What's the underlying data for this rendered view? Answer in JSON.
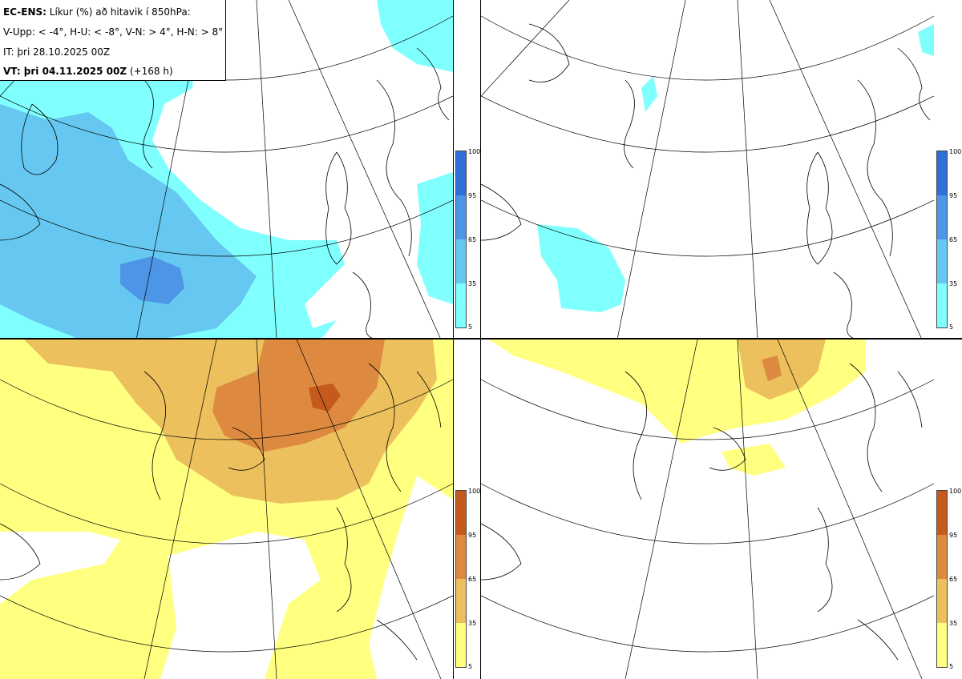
{
  "info": {
    "line1_bold": "EC-ENS:",
    "line1_rest": " Líkur (%) að hitavik í 850hPa:",
    "line2": "V-Upp: < -4°, H-U: < -8°, V-N: > 4°, H-N: > 8°",
    "line3": "IT: þri 28.10.2025 00Z",
    "line4_bold": "VT: þri 04.11.2025 00Z",
    "line4_rest": " (+168 h)"
  },
  "panels": [
    {
      "id": "upper-left",
      "variable": "V-Upp",
      "threshold": "< -4°"
    },
    {
      "id": "upper-right",
      "variable": "H-U",
      "threshold": "< -8°"
    },
    {
      "id": "lower-left",
      "variable": "V-N",
      "threshold": "> 4°"
    },
    {
      "id": "lower-right",
      "variable": "H-N",
      "threshold": "> 8°"
    }
  ],
  "colorbars": {
    "cold": {
      "labels": [
        "100",
        "95",
        "65",
        "35",
        "5"
      ],
      "colors": [
        "#2f6fd8",
        "#4d95e6",
        "#66c8f0",
        "#80ffff"
      ]
    },
    "warm": {
      "labels": [
        "100",
        "95",
        "65",
        "35",
        "5"
      ],
      "colors": [
        "#c55a1c",
        "#dd8a40",
        "#ecc05c",
        "#ffff80"
      ]
    }
  }
}
